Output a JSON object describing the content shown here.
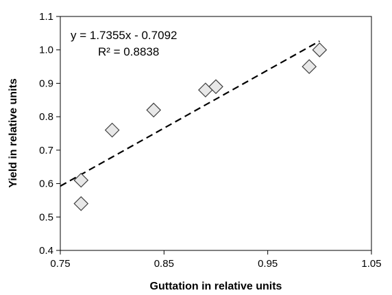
{
  "chart_data": {
    "type": "scatter",
    "xlabel": "Guttation in relative units",
    "ylabel": "Yield in relative units",
    "xlim": [
      0.75,
      1.05
    ],
    "ylim": [
      0.4,
      1.1
    ],
    "xticks": [
      0.75,
      0.85,
      0.95,
      1.05
    ],
    "xtick_labels": [
      "0.75",
      "0.85",
      "0.95",
      "1.05"
    ],
    "yticks": [
      0.4,
      0.5,
      0.6,
      0.7,
      0.8,
      0.9,
      1.0,
      1.1
    ],
    "ytick_labels": [
      "0.4",
      "0.5",
      "0.6",
      "0.7",
      "0.8",
      "0.9",
      "1.0",
      "1.1"
    ],
    "grid": false,
    "legend": "none",
    "marker": "diamond",
    "marker_fill": "#e8e8e8",
    "marker_stroke": "#404040",
    "trendline": {
      "slope": 1.7355,
      "intercept": -0.7092,
      "x_range": [
        0.75,
        1.0
      ],
      "style": "dashed",
      "color": "#000000"
    },
    "equation_label": "y = 1.7355x - 0.7092",
    "r2_label": "R² = 0.8838",
    "points": [
      {
        "x": 0.77,
        "y": 0.61
      },
      {
        "x": 0.77,
        "y": 0.54
      },
      {
        "x": 0.8,
        "y": 0.76
      },
      {
        "x": 0.84,
        "y": 0.82
      },
      {
        "x": 0.89,
        "y": 0.88
      },
      {
        "x": 0.9,
        "y": 0.89
      },
      {
        "x": 0.99,
        "y": 0.95
      },
      {
        "x": 1.0,
        "y": 1.0
      }
    ]
  }
}
